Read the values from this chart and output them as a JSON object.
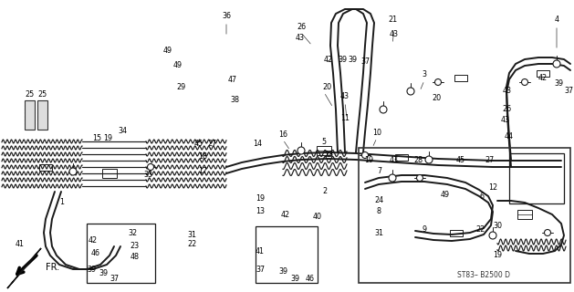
{
  "bg_color": "#ffffff",
  "stamp": "ST83– B2500 D",
  "fr_label": "FR.",
  "fig_width": 6.29,
  "fig_height": 3.2,
  "dpi": 100
}
